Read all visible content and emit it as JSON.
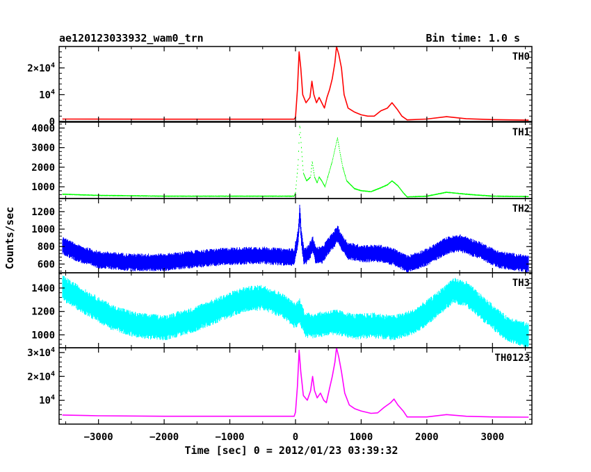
{
  "header": {
    "title": "ae120123033932_wam0_trn",
    "bin_time": "Bin time: 1.0 s"
  },
  "axes": {
    "xlabel": "Time [sec] 0 = 2012/01/23 03:39:32",
    "ylabel": "Counts/sec"
  },
  "chart_data": {
    "type": "line",
    "x_range": [
      -3600,
      3600
    ],
    "x_ticks": [
      {
        "value": -3000,
        "label": "−3000"
      },
      {
        "value": -2000,
        "label": "−2000"
      },
      {
        "value": -1000,
        "label": "−1000"
      },
      {
        "value": 0,
        "label": "0"
      },
      {
        "value": 1000,
        "label": "1000"
      },
      {
        "value": 2000,
        "label": "2000"
      },
      {
        "value": 3000,
        "label": "3000"
      }
    ],
    "panels": [
      {
        "name": "TH0",
        "color": "#ff0000",
        "ylim": [
          0,
          28000
        ],
        "yticks": [
          {
            "value": 0,
            "label": "0"
          },
          {
            "value": 10000,
            "label": "10",
            "exp": "4"
          },
          {
            "value": 20000,
            "label": "2×10",
            "exp": "4"
          }
        ],
        "noise": 0,
        "points": [
          [
            -3550,
            900
          ],
          [
            -2000,
            850
          ],
          [
            -500,
            850
          ],
          [
            -20,
            850
          ],
          [
            0,
            1500
          ],
          [
            30,
            12000
          ],
          [
            55,
            26000
          ],
          [
            80,
            20000
          ],
          [
            110,
            10000
          ],
          [
            160,
            7000
          ],
          [
            220,
            9000
          ],
          [
            250,
            15000
          ],
          [
            280,
            10000
          ],
          [
            320,
            7000
          ],
          [
            360,
            9000
          ],
          [
            400,
            7000
          ],
          [
            440,
            5000
          ],
          [
            480,
            9000
          ],
          [
            520,
            12000
          ],
          [
            560,
            16000
          ],
          [
            600,
            22000
          ],
          [
            625,
            28000
          ],
          [
            660,
            25000
          ],
          [
            700,
            20000
          ],
          [
            740,
            10000
          ],
          [
            800,
            5000
          ],
          [
            900,
            3500
          ],
          [
            1000,
            2500
          ],
          [
            1100,
            2000
          ],
          [
            1200,
            2000
          ],
          [
            1300,
            4000
          ],
          [
            1400,
            5000
          ],
          [
            1470,
            7000
          ],
          [
            1550,
            4500
          ],
          [
            1620,
            2000
          ],
          [
            1700,
            600
          ],
          [
            2000,
            900
          ],
          [
            2300,
            1800
          ],
          [
            2600,
            1000
          ],
          [
            3000,
            700
          ],
          [
            3550,
            500
          ]
        ]
      },
      {
        "name": "TH1",
        "color": "#00ff00",
        "ylim": [
          400,
          4300
        ],
        "yticks": [
          {
            "value": 1000,
            "label": "1000"
          },
          {
            "value": 2000,
            "label": "2000"
          },
          {
            "value": 3000,
            "label": "3000"
          },
          {
            "value": 4000,
            "label": "4000"
          }
        ],
        "noise": 40,
        "points": [
          [
            -3550,
            620
          ],
          [
            -3000,
            560
          ],
          [
            -2000,
            520
          ],
          [
            -1000,
            520
          ],
          [
            -20,
            520
          ],
          [
            0,
            700
          ],
          [
            40,
            2200
          ],
          [
            65,
            4200
          ],
          [
            90,
            3000
          ],
          [
            120,
            1700
          ],
          [
            170,
            1300
          ],
          [
            230,
            1500
          ],
          [
            255,
            2300
          ],
          [
            290,
            1500
          ],
          [
            330,
            1200
          ],
          [
            360,
            1500
          ],
          [
            400,
            1300
          ],
          [
            450,
            1000
          ],
          [
            500,
            1600
          ],
          [
            560,
            2300
          ],
          [
            620,
            3200
          ],
          [
            640,
            3500
          ],
          [
            680,
            2700
          ],
          [
            720,
            2000
          ],
          [
            780,
            1300
          ],
          [
            900,
            900
          ],
          [
            1000,
            800
          ],
          [
            1150,
            750
          ],
          [
            1300,
            950
          ],
          [
            1400,
            1100
          ],
          [
            1470,
            1300
          ],
          [
            1560,
            1050
          ],
          [
            1640,
            700
          ],
          [
            1700,
            480
          ],
          [
            2000,
            520
          ],
          [
            2300,
            720
          ],
          [
            2600,
            620
          ],
          [
            3000,
            520
          ],
          [
            3550,
            500
          ]
        ]
      },
      {
        "name": "TH2",
        "color": "#0000ff",
        "ylim": [
          500,
          1350
        ],
        "yticks": [
          {
            "value": 600,
            "label": "600"
          },
          {
            "value": 800,
            "label": "800"
          },
          {
            "value": 1000,
            "label": "1000"
          },
          {
            "value": 1200,
            "label": "1200"
          }
        ],
        "noise": 120,
        "points": [
          [
            -3550,
            810
          ],
          [
            -3300,
            720
          ],
          [
            -3000,
            650
          ],
          [
            -2500,
            620
          ],
          [
            -2000,
            620
          ],
          [
            -1500,
            660
          ],
          [
            -1000,
            690
          ],
          [
            -500,
            700
          ],
          [
            -200,
            680
          ],
          [
            -20,
            680
          ],
          [
            0,
            760
          ],
          [
            40,
            900
          ],
          [
            65,
            1200
          ],
          [
            90,
            900
          ],
          [
            130,
            680
          ],
          [
            200,
            720
          ],
          [
            260,
            830
          ],
          [
            310,
            700
          ],
          [
            400,
            700
          ],
          [
            500,
            800
          ],
          [
            600,
            900
          ],
          [
            640,
            950
          ],
          [
            700,
            850
          ],
          [
            800,
            750
          ],
          [
            1000,
            720
          ],
          [
            1300,
            720
          ],
          [
            1500,
            680
          ],
          [
            1650,
            620
          ],
          [
            1700,
            600
          ],
          [
            2000,
            680
          ],
          [
            2300,
            810
          ],
          [
            2500,
            840
          ],
          [
            2800,
            760
          ],
          [
            3100,
            650
          ],
          [
            3550,
            600
          ]
        ]
      },
      {
        "name": "TH3",
        "color": "#00ffff",
        "ylim": [
          890,
          1530
        ],
        "yticks": [
          {
            "value": 1000,
            "label": "1000"
          },
          {
            "value": 1200,
            "label": "1200"
          },
          {
            "value": 1400,
            "label": "1400"
          }
        ],
        "noise": 130,
        "points": [
          [
            -3550,
            1400
          ],
          [
            -3200,
            1280
          ],
          [
            -2800,
            1150
          ],
          [
            -2400,
            1080
          ],
          [
            -2000,
            1060
          ],
          [
            -1600,
            1120
          ],
          [
            -1200,
            1210
          ],
          [
            -800,
            1300
          ],
          [
            -500,
            1320
          ],
          [
            -200,
            1250
          ],
          [
            0,
            1160
          ],
          [
            60,
            1210
          ],
          [
            150,
            1080
          ],
          [
            300,
            1080
          ],
          [
            600,
            1110
          ],
          [
            900,
            1070
          ],
          [
            1200,
            1080
          ],
          [
            1500,
            1060
          ],
          [
            1800,
            1110
          ],
          [
            2100,
            1230
          ],
          [
            2400,
            1380
          ],
          [
            2600,
            1350
          ],
          [
            2900,
            1200
          ],
          [
            3200,
            1060
          ],
          [
            3550,
            990
          ]
        ]
      },
      {
        "name": "TH0123",
        "color": "#ff00ff",
        "ylim": [
          0,
          32000
        ],
        "yticks": [
          {
            "value": 10000,
            "label": "10",
            "exp": "4"
          },
          {
            "value": 20000,
            "label": "2×10",
            "exp": "4"
          },
          {
            "value": 30000,
            "label": "3×10",
            "exp": "4"
          }
        ],
        "noise": 0,
        "points": [
          [
            -3550,
            3800
          ],
          [
            -3000,
            3500
          ],
          [
            -2000,
            3300
          ],
          [
            -1000,
            3300
          ],
          [
            -20,
            3300
          ],
          [
            0,
            5000
          ],
          [
            30,
            16000
          ],
          [
            55,
            31000
          ],
          [
            80,
            22000
          ],
          [
            120,
            12000
          ],
          [
            180,
            10000
          ],
          [
            230,
            14000
          ],
          [
            260,
            20000
          ],
          [
            290,
            14000
          ],
          [
            330,
            11000
          ],
          [
            380,
            13000
          ],
          [
            430,
            10000
          ],
          [
            470,
            9000
          ],
          [
            510,
            14000
          ],
          [
            560,
            20000
          ],
          [
            600,
            26000
          ],
          [
            625,
            32000
          ],
          [
            660,
            28000
          ],
          [
            700,
            22000
          ],
          [
            750,
            13000
          ],
          [
            820,
            8000
          ],
          [
            900,
            6500
          ],
          [
            1000,
            5500
          ],
          [
            1150,
            4500
          ],
          [
            1250,
            4700
          ],
          [
            1350,
            7000
          ],
          [
            1450,
            9000
          ],
          [
            1500,
            10500
          ],
          [
            1560,
            8000
          ],
          [
            1640,
            5500
          ],
          [
            1700,
            3000
          ],
          [
            2000,
            3000
          ],
          [
            2300,
            4000
          ],
          [
            2600,
            3300
          ],
          [
            3000,
            3000
          ],
          [
            3550,
            2900
          ]
        ]
      }
    ]
  }
}
